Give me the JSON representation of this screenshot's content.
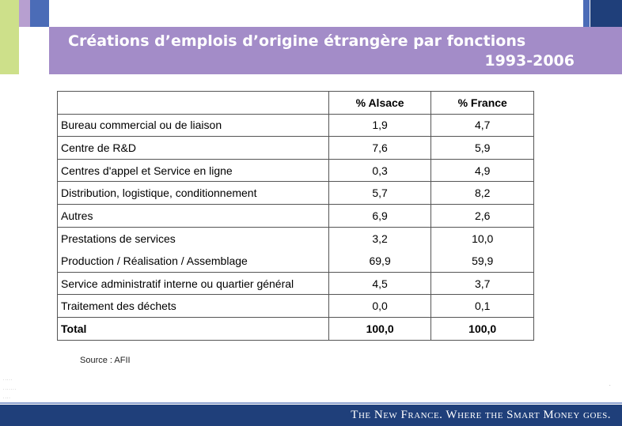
{
  "slide": {
    "title_line1": "Créations d’emplois d’origine étrangère par fonctions",
    "title_line2": "1993-2006"
  },
  "table": {
    "headers": [
      "",
      "% Alsace",
      "% France"
    ],
    "rows": [
      {
        "label": "Bureau commercial ou de liaison",
        "alsace": "1,9",
        "france": "4,7"
      },
      {
        "label": "Centre de R&D",
        "alsace": "7,6",
        "france": "5,9"
      },
      {
        "label": "Centres d'appel et Service en ligne",
        "alsace": "0,3",
        "france": "4,9"
      },
      {
        "label": "Distribution, logistique, conditionnement",
        "alsace": "5,7",
        "france": "8,2"
      },
      {
        "label": "Autres",
        "alsace": "6,9",
        "france": "2,6"
      },
      {
        "label": "Prestations de services",
        "alsace": "3,2",
        "france": "10,0"
      },
      {
        "label": "Production / Réalisation / Assemblage",
        "alsace": "69,9",
        "france": "59,9"
      },
      {
        "label": "Service administratif interne ou quartier général",
        "alsace": "4,5",
        "france": "3,7"
      },
      {
        "label": "Traitement des déchets",
        "alsace": "0,0",
        "france": "0,1"
      }
    ],
    "total": {
      "label": "Total",
      "alsace": "100,0",
      "france": "100,0"
    }
  },
  "source": "Source : AFII",
  "footer": {
    "tagline": "The New France. Where the Smart Money goes."
  },
  "colors": {
    "title_band": "#a38cc8",
    "footer_bar": "#1f3f7a",
    "accent_green": "#cde08a",
    "accent_blue": "#4b6cb7"
  }
}
